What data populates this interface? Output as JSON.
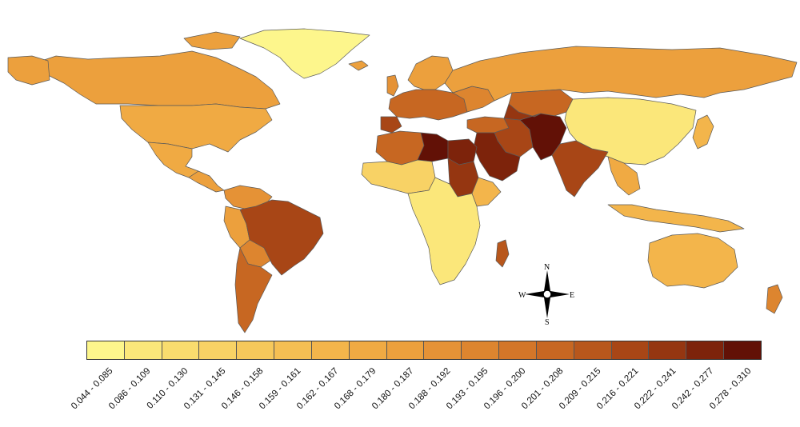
{
  "compass": {
    "north": "N",
    "south": "S",
    "east": "E",
    "west": "W"
  },
  "legend": {
    "ranges": [
      {
        "label": "0.044 - 0.085",
        "color": "#fdf68c"
      },
      {
        "label": "0.086 - 0.109",
        "color": "#fbe77a"
      },
      {
        "label": "0.110 - 0.130",
        "color": "#f9dc6e"
      },
      {
        "label": "0.131 - 0.145",
        "color": "#f8d265"
      },
      {
        "label": "0.146 - 0.158",
        "color": "#f6c85b"
      },
      {
        "label": "0.159 - 0.161",
        "color": "#f5bf53"
      },
      {
        "label": "0.162 - 0.167",
        "color": "#f3b54b"
      },
      {
        "label": "0.168 - 0.179",
        "color": "#f0aa43"
      },
      {
        "label": "0.180 - 0.187",
        "color": "#eca03d"
      },
      {
        "label": "0.188 - 0.192",
        "color": "#e59236"
      },
      {
        "label": "0.193 - 0.195",
        "color": "#dd852f"
      },
      {
        "label": "0.196 - 0.200",
        "color": "#d37629"
      },
      {
        "label": "0.201 - 0.208",
        "color": "#c76722"
      },
      {
        "label": "0.209 - 0.215",
        "color": "#b8571c"
      },
      {
        "label": "0.216 - 0.221",
        "color": "#a84616"
      },
      {
        "label": "0.222 - 0.241",
        "color": "#953611"
      },
      {
        "label": "0.242 - 0.277",
        "color": "#7d230b"
      },
      {
        "label": "0.278 - 0.310",
        "color": "#621106"
      }
    ]
  }
}
